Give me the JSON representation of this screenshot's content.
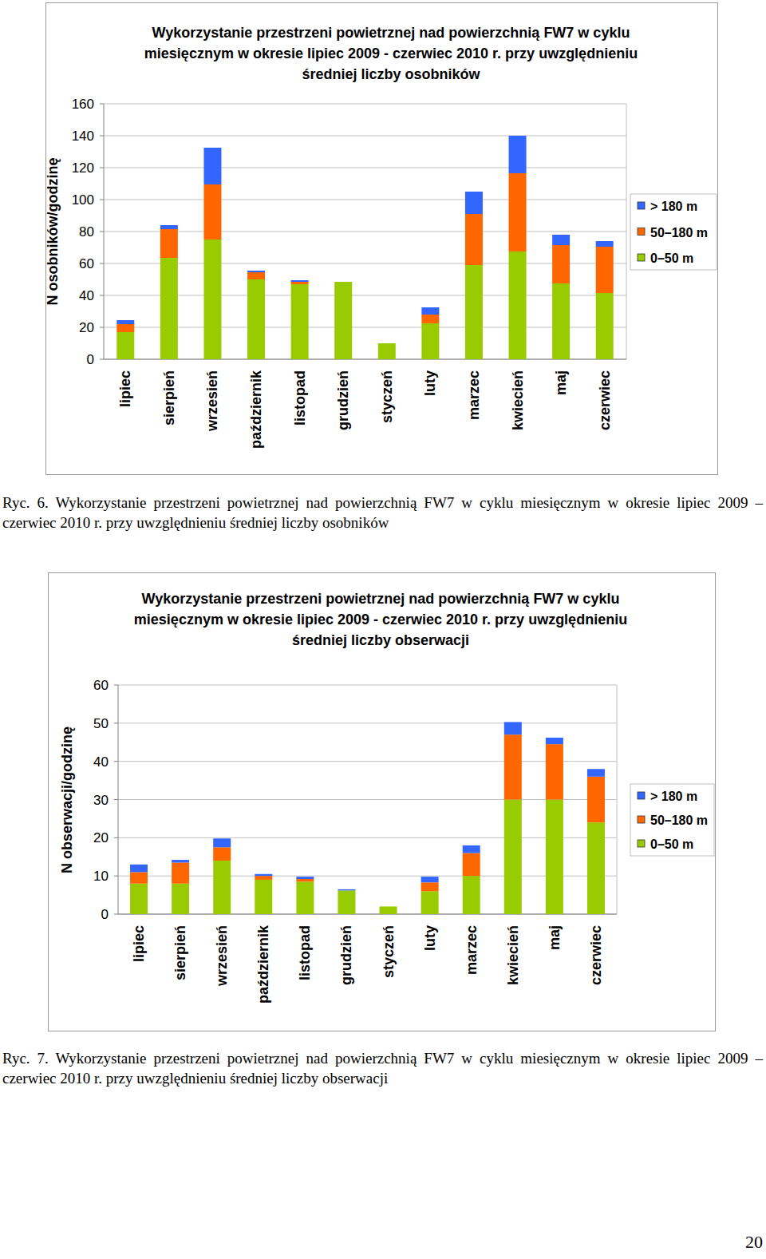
{
  "chart_data": [
    {
      "type": "bar",
      "stacked": true,
      "grid": true,
      "legend": "right",
      "title": "Wykorzystanie przestrzeni powietrznej nad powierzchnią FW7 w cyklu miesięcznym w okresie lipiec 2009 - czerwiec 2010 r. przy uwzględnieniu średniej liczby osobników",
      "y_label": "N osobników/godzinę",
      "categories": [
        "lipiec",
        "sierpień",
        "wrzesień",
        "październik",
        "listopad",
        "grudzień",
        "styczeń",
        "luty",
        "marzec",
        "kwiecień",
        "maj",
        "czerwiec"
      ],
      "ylim": [
        0,
        160
      ],
      "yticks": [
        0,
        20,
        40,
        60,
        80,
        100,
        120,
        140,
        160
      ],
      "series": [
        {
          "name": "0–50 m",
          "color": "#99cc00",
          "values": [
            17,
            63.5,
            75,
            50,
            47,
            48.5,
            10,
            22.5,
            59,
            67.5,
            47.5,
            41.5
          ]
        },
        {
          "name": "50–180 m",
          "color": "#ff6600",
          "values": [
            5,
            18,
            34.5,
            4.5,
            1.5,
            0,
            0,
            5.5,
            32,
            49,
            24,
            29
          ]
        },
        {
          "name": "> 180 m",
          "color": "#3366ff",
          "values": [
            2.5,
            2.5,
            23,
            1,
            1,
            0,
            0,
            4.5,
            14,
            23.5,
            6.5,
            3.5
          ]
        }
      ]
    },
    {
      "type": "bar",
      "stacked": true,
      "grid": true,
      "legend": "right",
      "title": "Wykorzystanie przestrzeni powietrznej nad powierzchnią  FW7 w cyklu miesięcznym w okresie lipiec 2009 - czerwiec 2010 r. przy uwzględnieniu średniej liczby obserwacji",
      "y_label": "N obserwacji/godzinę",
      "categories": [
        "lipiec",
        "sierpień",
        "wrzesień",
        "październik",
        "listopad",
        "grudzień",
        "styczeń",
        "luty",
        "marzec",
        "kwiecień",
        "maj",
        "czerwiec"
      ],
      "ylim": [
        0,
        60
      ],
      "yticks": [
        0,
        10,
        20,
        30,
        40,
        50,
        60
      ],
      "series": [
        {
          "name": "0–50 m",
          "color": "#99cc00",
          "values": [
            8,
            8,
            14,
            9,
            8.5,
            6.2,
            2,
            6,
            10,
            30,
            30,
            24
          ]
        },
        {
          "name": "50–180 m",
          "color": "#ff6600",
          "values": [
            3,
            5.5,
            3.5,
            1,
            0.7,
            0,
            0,
            2.3,
            6,
            17,
            14.5,
            12
          ]
        },
        {
          "name": "> 180 m",
          "color": "#3366ff",
          "values": [
            2,
            0.7,
            2.3,
            0.5,
            0.6,
            0.3,
            0,
            1.5,
            2,
            3.3,
            1.7,
            2
          ]
        }
      ]
    }
  ],
  "captions": [
    "Ryc. 6. Wykorzystanie przestrzeni powietrznej nad powierzchnią FW7 w cyklu miesięcznym w okresie lipiec 2009 – czerwiec 2010 r. przy uwzględnieniu średniej liczby osobników",
    "Ryc. 7. Wykorzystanie przestrzeni powietrznej nad powierzchnią FW7 w cyklu miesięcznym w okresie lipiec 2009 – czerwiec 2010 r. przy uwzględnieniu średniej liczby obserwacji"
  ],
  "page_number": "20"
}
